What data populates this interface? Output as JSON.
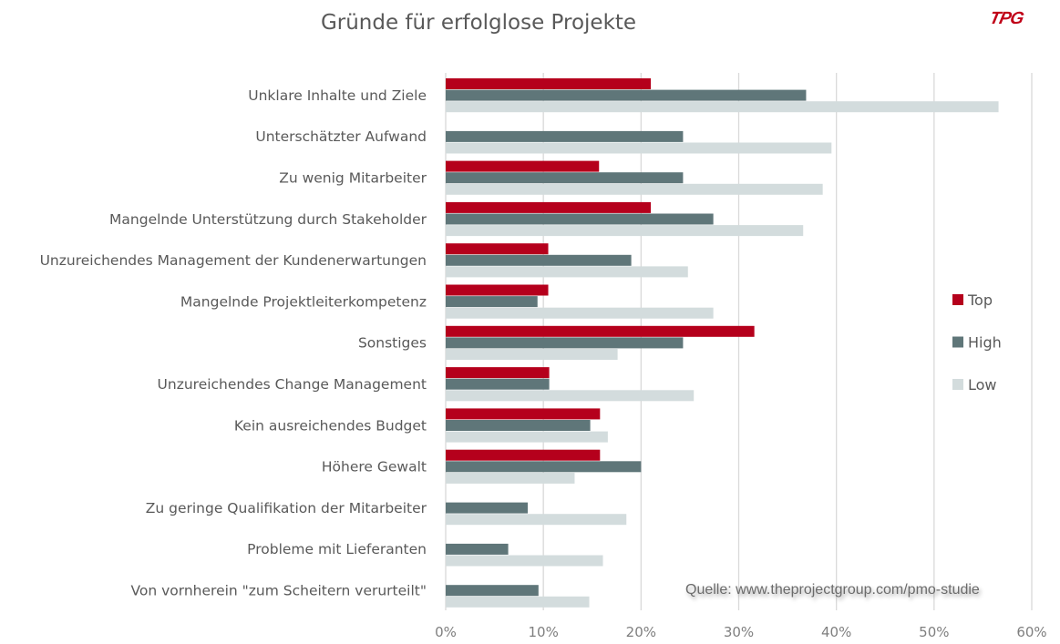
{
  "logo_text": "TPG",
  "source": "Quelle: www.theprojectgroup.com/pmo-studie",
  "chart_data": {
    "type": "bar",
    "orientation": "horizontal",
    "title": "Gründe für erfolglose Projekte",
    "categories": [
      "Unklare Inhalte und Ziele",
      "Unterschätzter Aufwand",
      "Zu wenig Mitarbeiter",
      "Mangelnde Unterstützung durch Stakeholder",
      "Unzureichendes Management der Kundenerwartungen",
      "Mangelnde Projektleiterkompetenz",
      "Sonstiges",
      "Unzureichendes Change Management",
      "Kein ausreichendes Budget",
      "Höhere Gewalt",
      "Zu geringe Qualifikation der Mitarbeiter",
      "Probleme mit Lieferanten",
      "Von vornherein \"zum Scheitern verurteilt\""
    ],
    "series": [
      {
        "name": "Top",
        "color": "#b5001c",
        "values": [
          21.0,
          0,
          15.7,
          21.0,
          10.5,
          10.5,
          31.6,
          10.6,
          15.8,
          15.8,
          0,
          0,
          0
        ]
      },
      {
        "name": "High",
        "color": "#5f7679",
        "values": [
          36.9,
          24.3,
          24.3,
          27.4,
          19.0,
          9.4,
          24.3,
          10.6,
          14.8,
          20.0,
          8.4,
          6.4,
          9.5
        ]
      },
      {
        "name": "Low",
        "color": "#d3dcdd",
        "values": [
          56.6,
          39.5,
          38.6,
          36.6,
          24.8,
          27.4,
          17.6,
          25.4,
          16.6,
          13.2,
          18.5,
          16.1,
          14.7
        ]
      }
    ],
    "xlim": [
      0,
      60
    ],
    "xticks": [
      "0%",
      "10%",
      "20%",
      "30%",
      "40%",
      "50%",
      "60%"
    ],
    "grid": "vertical",
    "legend": "right"
  }
}
